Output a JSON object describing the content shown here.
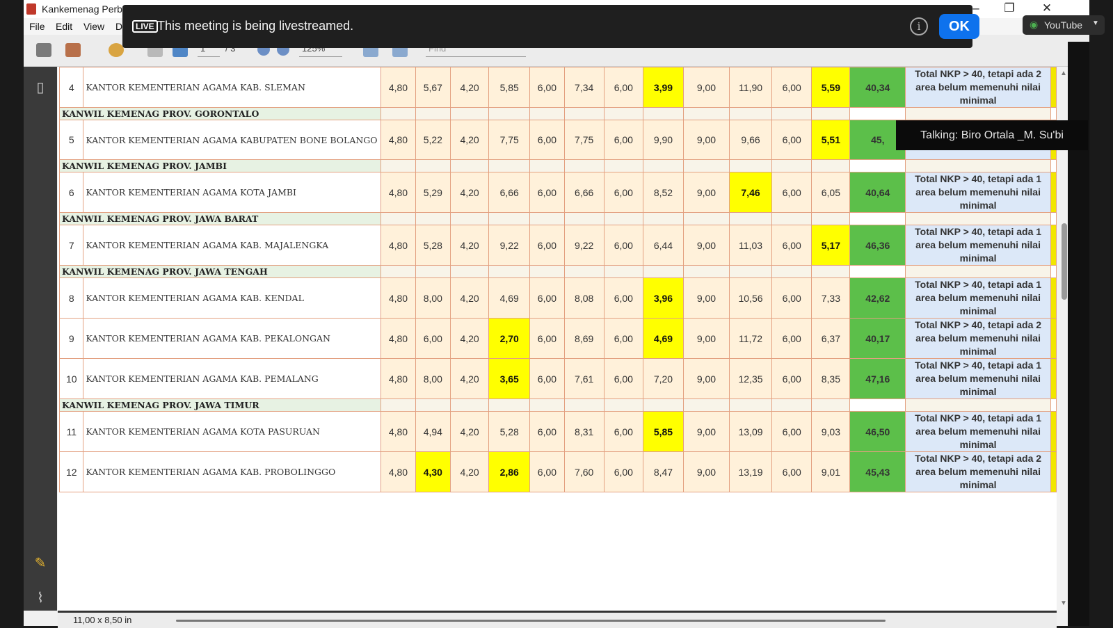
{
  "window": {
    "title": "Kankemenag Perb"
  },
  "menu": [
    "File",
    "Edit",
    "View",
    "D"
  ],
  "toolbar": {
    "page": "1",
    "page_total": "/ 3",
    "zoom": "125%",
    "find_placeholder": "Find"
  },
  "status": {
    "page_size": "11,00 x 8,50 in"
  },
  "banner": {
    "live_badge": "LIVE",
    "message": "This meeting is being livestreamed.",
    "ok_label": "OK",
    "info_label": "i"
  },
  "youtube": {
    "label": "YouTube"
  },
  "talking": "Talking: Biro Ortala _M. Su'bi",
  "table": {
    "rows": [
      {
        "type": "row",
        "no": "4",
        "name": "KANTOR KEMENTERIAN AGAMA KAB. SLEMAN",
        "vals": [
          "4,80",
          "5,67",
          "4,20",
          "5,85",
          "6,00",
          "7,34",
          "6,00",
          "3,99",
          "9,00",
          "11,90",
          "6,00",
          "5,59"
        ],
        "hl": [
          7,
          11
        ],
        "total": "40,34",
        "desc": "Total NKP > 40, tetapi ada 2 area belum memenuhi nilai minimal"
      },
      {
        "type": "group",
        "name": "KANWIL KEMENAG PROV. GORONTALO"
      },
      {
        "type": "row",
        "no": "5",
        "name": "KANTOR KEMENTERIAN AGAMA KABUPATEN BONE BOLANGO",
        "vals": [
          "4,80",
          "5,22",
          "4,20",
          "7,75",
          "6,00",
          "7,75",
          "6,00",
          "9,90",
          "9,00",
          "9,66",
          "6,00",
          "5,51"
        ],
        "hl": [
          11
        ],
        "total": "45,",
        "desc": "minimal"
      },
      {
        "type": "group",
        "name": "KANWIL KEMENAG PROV. JAMBI"
      },
      {
        "type": "row",
        "no": "6",
        "name": "KANTOR KEMENTERIAN AGAMA KOTA JAMBI",
        "vals": [
          "4,80",
          "5,29",
          "4,20",
          "6,66",
          "6,00",
          "6,66",
          "6,00",
          "8,52",
          "9,00",
          "7,46",
          "6,00",
          "6,05"
        ],
        "hl": [
          9
        ],
        "total": "40,64",
        "desc": "Total NKP > 40, tetapi ada 1 area belum memenuhi nilai minimal"
      },
      {
        "type": "group",
        "name": "KANWIL KEMENAG PROV. JAWA BARAT"
      },
      {
        "type": "row",
        "no": "7",
        "name": "KANTOR KEMENTERIAN AGAMA KAB. MAJALENGKA",
        "vals": [
          "4,80",
          "5,28",
          "4,20",
          "9,22",
          "6,00",
          "9,22",
          "6,00",
          "6,44",
          "9,00",
          "11,03",
          "6,00",
          "5,17"
        ],
        "hl": [
          11
        ],
        "total": "46,36",
        "desc": "Total NKP > 40, tetapi ada 1 area belum memenuhi nilai minimal"
      },
      {
        "type": "group",
        "name": "KANWIL KEMENAG PROV. JAWA TENGAH"
      },
      {
        "type": "row",
        "no": "8",
        "name": "KANTOR KEMENTERIAN AGAMA KAB. KENDAL",
        "vals": [
          "4,80",
          "8,00",
          "4,20",
          "4,69",
          "6,00",
          "8,08",
          "6,00",
          "3,96",
          "9,00",
          "10,56",
          "6,00",
          "7,33"
        ],
        "hl": [
          7
        ],
        "total": "42,62",
        "desc": "Total NKP > 40, tetapi ada 1 area belum memenuhi nilai minimal"
      },
      {
        "type": "row",
        "no": "9",
        "name": "KANTOR KEMENTERIAN AGAMA KAB. PEKALONGAN",
        "vals": [
          "4,80",
          "6,00",
          "4,20",
          "2,70",
          "6,00",
          "8,69",
          "6,00",
          "4,69",
          "9,00",
          "11,72",
          "6,00",
          "6,37"
        ],
        "hl": [
          3,
          7
        ],
        "total": "40,17",
        "desc": "Total NKP > 40, tetapi ada 2 area belum memenuhi nilai minimal"
      },
      {
        "type": "row",
        "no": "10",
        "name": "KANTOR KEMENTERIAN AGAMA KAB. PEMALANG",
        "vals": [
          "4,80",
          "8,00",
          "4,20",
          "3,65",
          "6,00",
          "7,61",
          "6,00",
          "7,20",
          "9,00",
          "12,35",
          "6,00",
          "8,35"
        ],
        "hl": [
          3
        ],
        "total": "47,16",
        "desc": "Total NKP > 40, tetapi ada 1 area belum memenuhi nilai minimal"
      },
      {
        "type": "group",
        "name": "KANWIL KEMENAG PROV. JAWA TIMUR"
      },
      {
        "type": "row",
        "no": "11",
        "name": "KANTOR KEMENTERIAN AGAMA KOTA PASURUAN",
        "vals": [
          "4,80",
          "4,94",
          "4,20",
          "5,28",
          "6,00",
          "8,31",
          "6,00",
          "5,85",
          "9,00",
          "13,09",
          "6,00",
          "9,03"
        ],
        "hl": [
          7
        ],
        "total": "46,50",
        "desc": "Total NKP > 40, tetapi ada 1 area belum memenuhi nilai minimal"
      },
      {
        "type": "row",
        "no": "12",
        "name": "KANTOR KEMENTERIAN AGAMA KAB. PROBOLINGGO",
        "vals": [
          "4,80",
          "4,30",
          "4,20",
          "2,86",
          "6,00",
          "7,60",
          "6,00",
          "8,47",
          "9,00",
          "13,19",
          "6,00",
          "9,01"
        ],
        "hl": [
          1,
          3
        ],
        "total": "45,43",
        "desc": "Total NKP > 40, tetapi ada 2 area belum memenuhi nilai minimal"
      }
    ]
  }
}
